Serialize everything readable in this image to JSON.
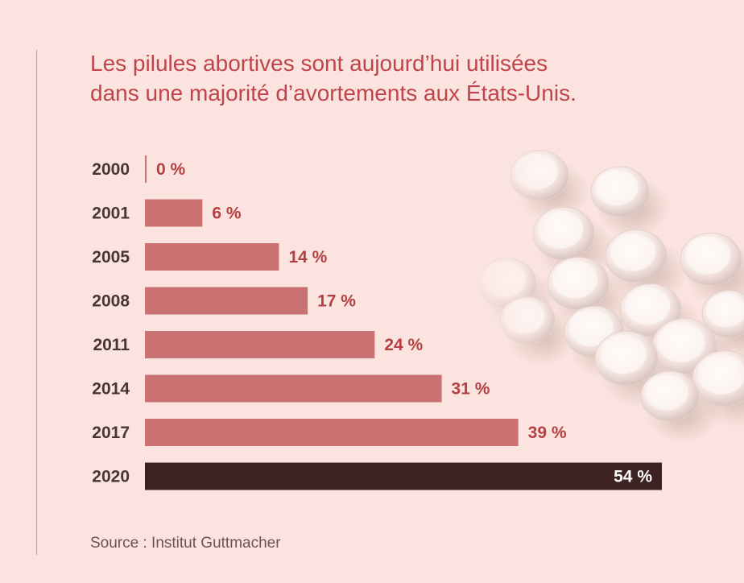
{
  "title": {
    "line1": "Les pilules abortives sont aujourd’hui utilisées",
    "line2": "dans une majorité d’avortements aux États-Unis."
  },
  "source": "Source : Institut Guttmacher",
  "colors": {
    "background": "#fbe4df",
    "title": "#c0444a",
    "bar": "#c97271",
    "bar_highlight": "#3c2221",
    "value_label": "#b53f41",
    "value_label_highlight": "#ffffff",
    "year_label": "#4b3533"
  },
  "chart_data": {
    "type": "bar",
    "orientation": "horizontal",
    "categories": [
      "2000",
      "2001",
      "2005",
      "2008",
      "2011",
      "2014",
      "2017",
      "2020"
    ],
    "values": [
      0,
      6,
      14,
      17,
      24,
      31,
      39,
      54
    ],
    "value_labels": [
      "0 %",
      "6 %",
      "14 %",
      "17 %",
      "24 %",
      "31 %",
      "39 %",
      "54 %"
    ],
    "highlight_index": 7,
    "xlim": [
      0,
      54
    ],
    "grid": false,
    "unit": "%"
  }
}
